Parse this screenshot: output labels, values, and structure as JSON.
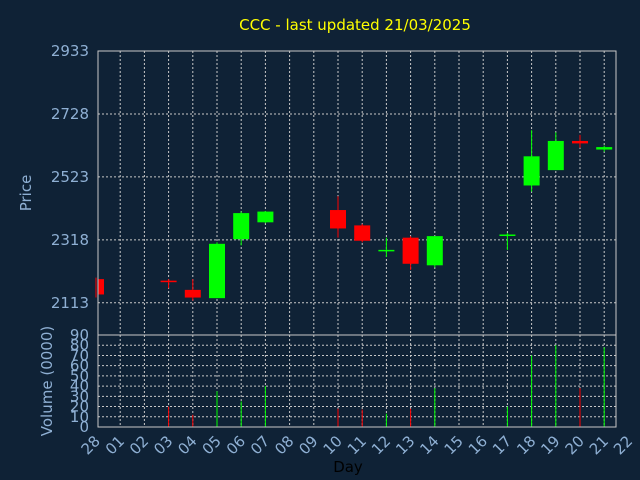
{
  "chart_data": {
    "type": "candlestick",
    "title": "CCC - last updated 21/03/2025",
    "xlabel": "Day",
    "price_panel": {
      "ylabel": "Price",
      "ylim": [
        2008,
        2933
      ],
      "yticks": [
        2113,
        2318,
        2523,
        2728,
        2933
      ],
      "grid": true
    },
    "volume_panel": {
      "ylabel": "Volume (0000)",
      "ylim": [
        0,
        90
      ],
      "yticks": [
        0,
        10,
        20,
        30,
        40,
        50,
        60,
        70,
        80,
        90
      ],
      "grid": true
    },
    "x_ticks": [
      "28",
      "01",
      "02",
      "03",
      "04",
      "05",
      "06",
      "07",
      "08",
      "09",
      "10",
      "11",
      "12",
      "13",
      "14",
      "15",
      "16",
      "17",
      "18",
      "19",
      "20",
      "21",
      "22"
    ],
    "candles": [
      {
        "day": "28",
        "open": 2190,
        "high": 2195,
        "low": 2130,
        "close": 2140,
        "volume": 0
      },
      {
        "day": "03",
        "open": 2185,
        "high": 2190,
        "low": 2160,
        "close": 2180,
        "volume": 20
      },
      {
        "day": "04",
        "open": 2155,
        "high": 2190,
        "low": 2120,
        "close": 2130,
        "volume": 12
      },
      {
        "day": "05",
        "open": 2128,
        "high": 2310,
        "low": 2128,
        "close": 2305,
        "volume": 35
      },
      {
        "day": "06",
        "open": 2320,
        "high": 2410,
        "low": 2300,
        "close": 2405,
        "volume": 25
      },
      {
        "day": "07",
        "open": 2375,
        "high": 2412,
        "low": 2372,
        "close": 2410,
        "volume": 40
      },
      {
        "day": "10",
        "open": 2415,
        "high": 2460,
        "low": 2325,
        "close": 2355,
        "volume": 18
      },
      {
        "day": "11",
        "open": 2365,
        "high": 2370,
        "low": 2310,
        "close": 2315,
        "volume": 17
      },
      {
        "day": "12",
        "open": 2280,
        "high": 2325,
        "low": 2262,
        "close": 2283,
        "volume": 13
      },
      {
        "day": "13",
        "open": 2325,
        "high": 2330,
        "low": 2220,
        "close": 2240,
        "volume": 18
      },
      {
        "day": "14",
        "open": 2235,
        "high": 2330,
        "low": 2228,
        "close": 2330,
        "volume": 38
      },
      {
        "day": "17",
        "open": 2330,
        "high": 2340,
        "low": 2285,
        "close": 2333,
        "volume": 20
      },
      {
        "day": "18",
        "open": 2495,
        "high": 2675,
        "low": 2475,
        "close": 2590,
        "volume": 70
      },
      {
        "day": "19",
        "open": 2545,
        "high": 2668,
        "low": 2545,
        "close": 2640,
        "volume": 80
      },
      {
        "day": "20",
        "open": 2640,
        "high": 2660,
        "low": 2618,
        "close": 2632,
        "volume": 38
      },
      {
        "day": "21",
        "open": 2612,
        "high": 2625,
        "low": 2605,
        "close": 2620,
        "volume": 78
      }
    ],
    "colors": {
      "up": "#00ff00",
      "down": "#ff0000",
      "background": "#0f2236",
      "plot_border": "#c8c8c8",
      "title": "#ffff00",
      "tick_text": "#8fb0d4"
    }
  }
}
